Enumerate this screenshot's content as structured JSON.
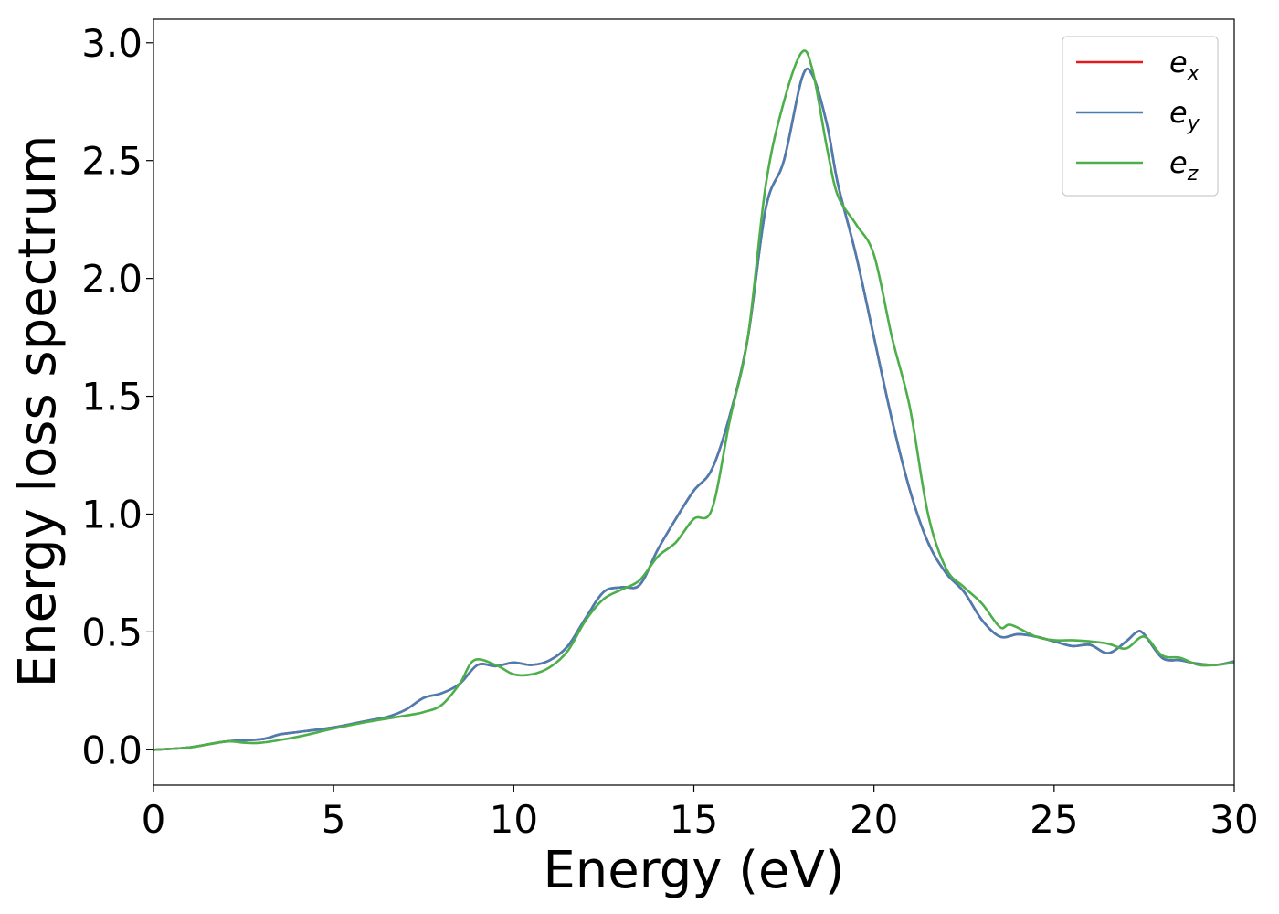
{
  "chart_data": {
    "type": "line",
    "title": "",
    "xlabel": "Energy (eV)",
    "ylabel": "Energy loss spectrum",
    "xlim": [
      0,
      30
    ],
    "ylim": [
      -0.15,
      3.1
    ],
    "xticks": [
      0,
      5,
      10,
      15,
      20,
      25,
      30
    ],
    "xtick_labels": [
      "0",
      "5",
      "10",
      "15",
      "20",
      "25",
      "30"
    ],
    "yticks": [
      0.0,
      0.5,
      1.0,
      1.5,
      2.0,
      2.5,
      3.0
    ],
    "ytick_labels": [
      "0.0",
      "0.5",
      "1.0",
      "1.5",
      "2.0",
      "2.5",
      "3.0"
    ],
    "grid": false,
    "legend_position": "top-right",
    "series": [
      {
        "name": "e_x",
        "legend_main": "e",
        "legend_sub": "x",
        "color": "#e41a1c",
        "x": [
          0,
          1,
          2,
          3,
          3.5,
          4,
          5,
          6,
          6.5,
          7,
          7.5,
          8,
          8.5,
          9,
          9.5,
          10,
          10.5,
          11,
          11.5,
          12,
          12.5,
          13,
          13.5,
          14,
          14.5,
          15,
          15.5,
          16,
          16.5,
          17,
          17.5,
          18,
          18.3,
          18.7,
          19,
          19.5,
          20,
          20.5,
          21,
          21.5,
          22,
          22.5,
          23,
          23.5,
          24,
          24.5,
          25,
          25.5,
          26,
          26.5,
          27,
          27.3,
          27.5,
          28,
          28.5,
          29,
          29.5,
          30
        ],
        "y": [
          0.0,
          0.01,
          0.035,
          0.045,
          0.065,
          0.075,
          0.095,
          0.125,
          0.14,
          0.17,
          0.22,
          0.24,
          0.28,
          0.36,
          0.355,
          0.37,
          0.36,
          0.38,
          0.44,
          0.56,
          0.67,
          0.69,
          0.7,
          0.85,
          0.98,
          1.1,
          1.19,
          1.42,
          1.75,
          2.3,
          2.5,
          2.85,
          2.86,
          2.65,
          2.4,
          2.1,
          1.75,
          1.4,
          1.1,
          0.88,
          0.75,
          0.67,
          0.55,
          0.48,
          0.49,
          0.48,
          0.46,
          0.44,
          0.445,
          0.41,
          0.46,
          0.5,
          0.49,
          0.39,
          0.38,
          0.365,
          0.36,
          0.375
        ]
      },
      {
        "name": "e_y",
        "legend_main": "e",
        "legend_sub": "y",
        "color": "#4a7eb3",
        "x": [
          0,
          1,
          2,
          3,
          3.5,
          4,
          5,
          6,
          6.5,
          7,
          7.5,
          8,
          8.5,
          9,
          9.5,
          10,
          10.5,
          11,
          11.5,
          12,
          12.5,
          13,
          13.5,
          14,
          14.5,
          15,
          15.5,
          16,
          16.5,
          17,
          17.5,
          18,
          18.3,
          18.7,
          19,
          19.5,
          20,
          20.5,
          21,
          21.5,
          22,
          22.5,
          23,
          23.5,
          24,
          24.5,
          25,
          25.5,
          26,
          26.5,
          27,
          27.3,
          27.5,
          28,
          28.5,
          29,
          29.5,
          30
        ],
        "y": [
          0.0,
          0.01,
          0.035,
          0.045,
          0.065,
          0.075,
          0.095,
          0.125,
          0.14,
          0.17,
          0.22,
          0.24,
          0.28,
          0.36,
          0.355,
          0.37,
          0.36,
          0.38,
          0.44,
          0.56,
          0.67,
          0.69,
          0.7,
          0.85,
          0.98,
          1.1,
          1.19,
          1.42,
          1.75,
          2.3,
          2.5,
          2.85,
          2.86,
          2.65,
          2.4,
          2.1,
          1.75,
          1.4,
          1.1,
          0.88,
          0.75,
          0.67,
          0.55,
          0.48,
          0.49,
          0.48,
          0.46,
          0.44,
          0.445,
          0.41,
          0.46,
          0.5,
          0.49,
          0.39,
          0.38,
          0.365,
          0.36,
          0.375
        ]
      },
      {
        "name": "e_z",
        "legend_main": "e",
        "legend_sub": "z",
        "color": "#4daf4a",
        "x": [
          0,
          1,
          2,
          2.5,
          3,
          4,
          5,
          6,
          7,
          7.5,
          8,
          8.5,
          8.9,
          9.5,
          10,
          10.5,
          11,
          11.5,
          12,
          12.5,
          13,
          13.5,
          14,
          14.5,
          15,
          15.5,
          16,
          16.5,
          17,
          17.5,
          18,
          18.3,
          18.7,
          19,
          19.5,
          20,
          20.5,
          21,
          21.5,
          22,
          22.5,
          23,
          23.5,
          23.8,
          24.5,
          25,
          25.5,
          26,
          26.5,
          27,
          27.5,
          28,
          28.5,
          29,
          29.5,
          30
        ],
        "y": [
          0.0,
          0.01,
          0.035,
          0.03,
          0.03,
          0.055,
          0.09,
          0.12,
          0.145,
          0.16,
          0.19,
          0.28,
          0.38,
          0.36,
          0.32,
          0.32,
          0.35,
          0.42,
          0.55,
          0.64,
          0.68,
          0.72,
          0.82,
          0.88,
          0.98,
          1.02,
          1.4,
          1.75,
          2.4,
          2.75,
          2.96,
          2.88,
          2.55,
          2.35,
          2.23,
          2.1,
          1.75,
          1.45,
          1.0,
          0.77,
          0.69,
          0.62,
          0.52,
          0.53,
          0.48,
          0.465,
          0.465,
          0.46,
          0.45,
          0.43,
          0.48,
          0.4,
          0.39,
          0.36,
          0.36,
          0.37
        ]
      }
    ]
  }
}
